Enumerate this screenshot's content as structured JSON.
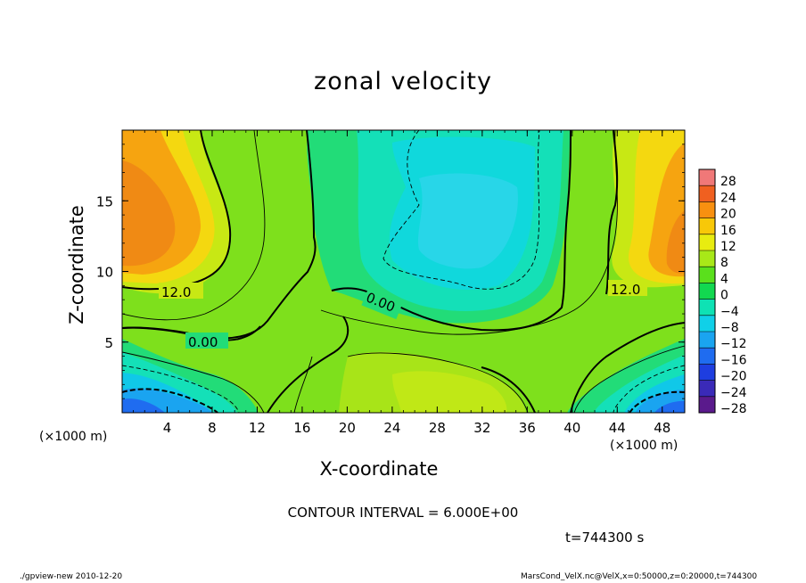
{
  "chart_data": {
    "type": "heatmap",
    "title": "zonal velocity",
    "xlabel": "X-coordinate",
    "ylabel": "Z-coordinate",
    "x_unit": "(×1000 m)",
    "y_unit": "(×1000 m)",
    "xlim": [
      0,
      50
    ],
    "ylim": [
      0,
      20
    ],
    "x_ticks": [
      4,
      8,
      12,
      16,
      20,
      24,
      28,
      32,
      36,
      40,
      44,
      48
    ],
    "y_ticks": [
      5,
      10,
      15
    ],
    "colorbar": {
      "levels": [
        -28,
        -24,
        -20,
        -16,
        -12,
        -8,
        -4,
        0,
        4,
        8,
        12,
        16,
        20,
        24,
        28
      ],
      "labels": [
        "28",
        "24",
        "20",
        "16",
        "12",
        "8",
        "4",
        "0",
        "−4",
        "−8",
        "−12",
        "−16",
        "−20",
        "−24",
        "−28"
      ],
      "colors": [
        "#5a1a8c",
        "#3a2ab8",
        "#1e3ee0",
        "#1f6cf0",
        "#1aa4f0",
        "#10d0e8",
        "#0ee2b4",
        "#12d850",
        "#5ae01c",
        "#a8e818",
        "#e8ec10",
        "#f8c808",
        "#f89010",
        "#f06020",
        "#f07878"
      ]
    },
    "contour_labels": [
      {
        "text": "12.0"
      },
      {
        "text": "0.00"
      },
      {
        "text": "0.00"
      },
      {
        "text": "12.0"
      }
    ],
    "grid": false
  },
  "annotations": {
    "contour_interval": "CONTOUR INTERVAL = 6.000E+00",
    "time": "t=744300 s",
    "footer_left": "./gpview-new 2010-12-20",
    "footer_right": "MarsCond_VelX.nc@VelX,x=0:50000,z=0:20000,t=744300"
  }
}
